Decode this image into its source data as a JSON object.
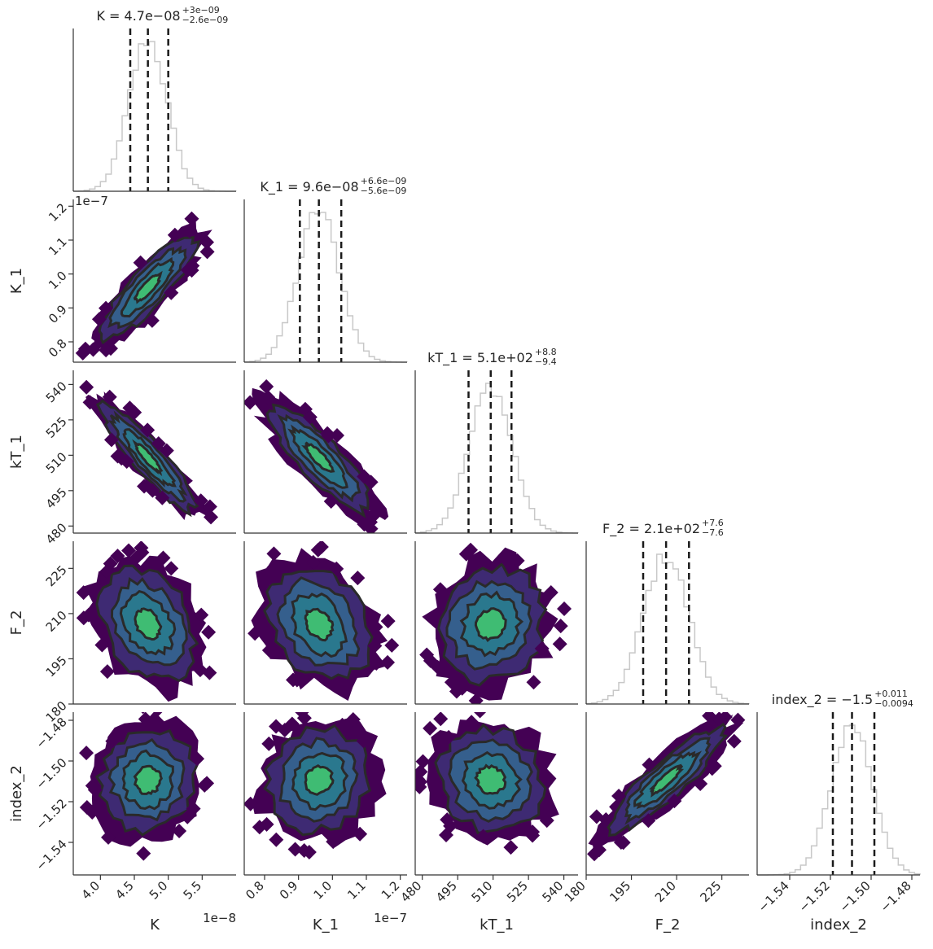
{
  "chart_data": {
    "type": "corner",
    "parameters": [
      "K",
      "K_1",
      "kT_1",
      "F_2",
      "index_2"
    ],
    "titles": [
      {
        "param": "K",
        "text": "K = 4.7e−08",
        "sup": "+3e−09",
        "sub": "−2.6e−09"
      },
      {
        "param": "K_1",
        "text": "K_1 = 9.6e−08",
        "sup": "+6.6e−09",
        "sub": "−5.6e−09"
      },
      {
        "param": "kT_1",
        "text": "kT_1 = 5.1e+02",
        "sup": "+8.8",
        "sub": "−9.4"
      },
      {
        "param": "F_2",
        "text": "F_2 = 2.1e+02",
        "sup": "+7.6",
        "sub": "−7.6"
      },
      {
        "param": "index_2",
        "text": "index_2 = −1.5",
        "sup": "+0.011",
        "sub": "−0.0094"
      }
    ],
    "axes": [
      {
        "name": "K",
        "label": "K",
        "range": [
          3.6e-08,
          6e-08
        ],
        "ticks": [
          4e-08,
          4.5e-08,
          5e-08,
          5.5e-08
        ],
        "tick_labels": [
          "4.0",
          "4.5",
          "5.0",
          "5.5"
        ],
        "offset_text": "1e−8",
        "median": 4.7e-08,
        "q16": 4.44e-08,
        "q84": 5e-08
      },
      {
        "name": "K_1",
        "label": "K_1",
        "range": [
          7.4e-08,
          1.22e-07
        ],
        "ticks": [
          8e-08,
          9e-08,
          1e-07,
          1.1e-07,
          1.2e-07
        ],
        "tick_labels": [
          "0.8",
          "0.9",
          "1.0",
          "1.1",
          "1.2"
        ],
        "offset_text": "1e−7",
        "median": 9.6e-08,
        "q16": 9.04e-08,
        "q84": 1.026e-07
      },
      {
        "name": "kT_1",
        "label": "kT_1",
        "range": [
          477,
          546
        ],
        "ticks": [
          480,
          495,
          510,
          525,
          540
        ],
        "tick_labels": [
          "480",
          "495",
          "510",
          "525",
          "540"
        ],
        "offset_text": "",
        "median": 509.0,
        "q16": 499.6,
        "q84": 517.8
      },
      {
        "name": "F_2",
        "label": "F_2",
        "range": [
          180,
          234
        ],
        "ticks": [
          180,
          195,
          210,
          225
        ],
        "tick_labels": [
          "180",
          "195",
          "210",
          "225"
        ],
        "offset_text": "",
        "median": 206.5,
        "q16": 198.9,
        "q84": 214.1
      },
      {
        "name": "index_2",
        "label": "index_2",
        "range": [
          -1.556,
          -1.476
        ],
        "ticks": [
          -1.54,
          -1.52,
          -1.5,
          -1.48
        ],
        "tick_labels": [
          "−1.54",
          "−1.52",
          "−1.50",
          "−1.48"
        ],
        "offset_text": "",
        "median": -1.5094,
        "q16": -1.5188,
        "q84": -1.4984
      }
    ],
    "correlations": [
      {
        "pair": [
          "K",
          "K_1"
        ],
        "rho": 0.85
      },
      {
        "pair": [
          "K",
          "kT_1"
        ],
        "rho": -0.9
      },
      {
        "pair": [
          "K_1",
          "kT_1"
        ],
        "rho": -0.85
      },
      {
        "pair": [
          "K",
          "F_2"
        ],
        "rho": -0.3
      },
      {
        "pair": [
          "K_1",
          "F_2"
        ],
        "rho": -0.3
      },
      {
        "pair": [
          "kT_1",
          "F_2"
        ],
        "rho": 0.1
      },
      {
        "pair": [
          "K",
          "index_2"
        ],
        "rho": 0.05
      },
      {
        "pair": [
          "K_1",
          "index_2"
        ],
        "rho": 0.1
      },
      {
        "pair": [
          "kT_1",
          "index_2"
        ],
        "rho": -0.1
      },
      {
        "pair": [
          "F_2",
          "index_2"
        ],
        "rho": 0.88
      }
    ],
    "histogram_color": "#c8c8c8",
    "quantile_line_color": "#1a1a1a",
    "contour_colors": [
      "#440154",
      "#3e2a73",
      "#355f8d",
      "#2a788e",
      "#3fbc73"
    ],
    "contour_line_color": "#2a2a2a",
    "grid": false
  }
}
